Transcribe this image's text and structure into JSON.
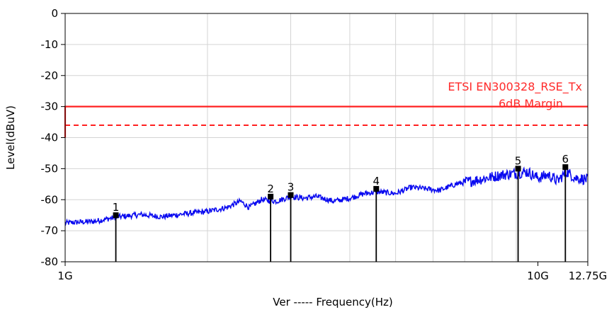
{
  "chart_data": {
    "type": "line",
    "xscale": "log",
    "xlim_hz": [
      1000000000,
      12750000000
    ],
    "ylim": [
      -80,
      0
    ],
    "xlabel": "Frequency(Hz)",
    "xlabel_prefix": "Ver",
    "xlabel_separator": "-----",
    "ylabel": "Level(dBuV)",
    "grid": true,
    "yticks": [
      0,
      -10,
      -20,
      -30,
      -40,
      -50,
      -60,
      -70,
      -80
    ],
    "xticks": [
      {
        "value": 1000000000,
        "label": "1G"
      },
      {
        "value": 10000000000,
        "label": "10G"
      },
      {
        "value": 12750000000,
        "label": "12.75G"
      }
    ],
    "limits": [
      {
        "name": "ETSI EN300328_RSE_Tx",
        "value": -30,
        "style": "solid",
        "color": "#ff2020"
      },
      {
        "name": "6dB Margin",
        "value": -36,
        "style": "dashed",
        "color": "#ff2020"
      }
    ],
    "series": [
      {
        "style": "noisy-line",
        "color": "#0a0af0",
        "x_hz": [
          1000000000,
          1150000000,
          1300000000,
          1450000000,
          1600000000,
          1800000000,
          2000000000,
          2200000000,
          2350000000,
          2450000000,
          2600000000,
          2800000000,
          3000000000,
          3200000000,
          3400000000,
          3700000000,
          4000000000,
          4300000000,
          4600000000,
          5000000000,
          5400000000,
          5800000000,
          6200000000,
          6700000000,
          7200000000,
          7800000000,
          8400000000,
          9000000000,
          9500000000,
          10000000000,
          10500000000,
          11000000000,
          11500000000,
          12000000000,
          12750000000
        ],
        "y": [
          -67.5,
          -67,
          -65.5,
          -64.8,
          -65.5,
          -64.5,
          -63.8,
          -62.5,
          -60.5,
          -62.5,
          -60,
          -60.5,
          -59,
          -59.5,
          -59,
          -60.5,
          -59.5,
          -58,
          -57.5,
          -58,
          -56,
          -56.5,
          -57,
          -55,
          -54,
          -53,
          -52,
          -51.5,
          -51,
          -53,
          -52,
          -54,
          -51,
          -53,
          -53.5
        ]
      }
    ],
    "markers": [
      {
        "label": "1",
        "x_hz": 1280000000,
        "y": -65
      },
      {
        "label": "2",
        "x_hz": 2720000000,
        "y": -59
      },
      {
        "label": "3",
        "x_hz": 3000000000,
        "y": -58.5
      },
      {
        "label": "4",
        "x_hz": 4550000000,
        "y": -56.5
      },
      {
        "label": "5",
        "x_hz": 9080000000,
        "y": -50
      },
      {
        "label": "6",
        "x_hz": 11430000000,
        "y": -49.5
      }
    ],
    "minor_x_gridlines_hz": [
      2000000000,
      3000000000,
      4000000000,
      5000000000,
      6000000000,
      7000000000,
      8000000000,
      9000000000
    ]
  }
}
